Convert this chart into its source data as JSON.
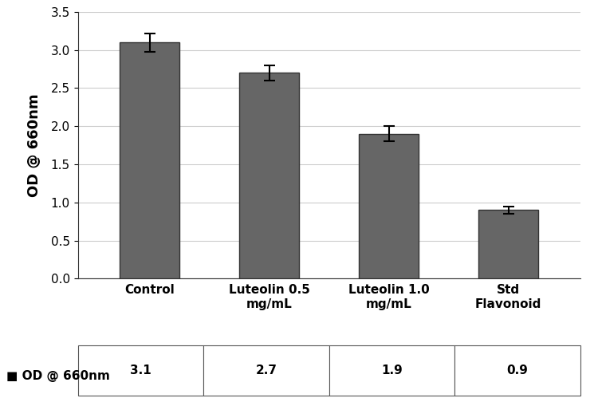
{
  "categories": [
    "Control",
    "Luteolin 0.5\nmg/mL",
    "Luteolin 1.0\nmg/mL",
    "Std\nFlavonoid"
  ],
  "values": [
    3.1,
    2.7,
    1.9,
    0.9
  ],
  "errors": [
    0.12,
    0.1,
    0.1,
    0.05
  ],
  "bar_color": "#666666",
  "bar_edge_color": "#333333",
  "ylabel": "OD @ 660nm",
  "ylim": [
    0,
    3.5
  ],
  "yticks": [
    0,
    0.5,
    1.0,
    1.5,
    2.0,
    2.5,
    3.0,
    3.5
  ],
  "legend_values": [
    "3.1",
    "2.7",
    "1.9",
    "0.9"
  ],
  "table_row_label": "OD @ 660nm",
  "background_color": "#ffffff",
  "bar_width": 0.5,
  "grid_color": "#cccccc",
  "axis_fontsize": 13,
  "tick_fontsize": 11,
  "table_fontsize": 11
}
